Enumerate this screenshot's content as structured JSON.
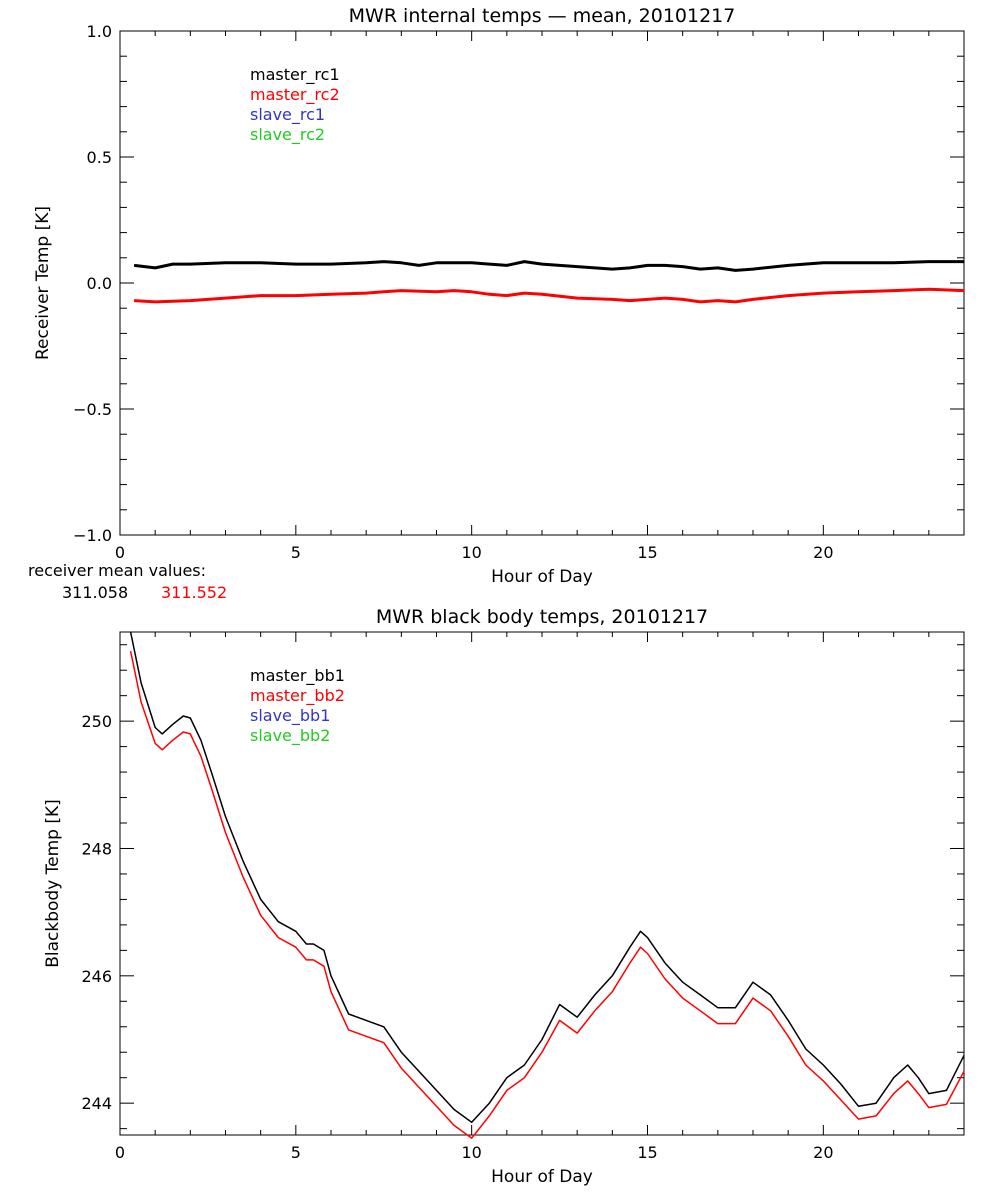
{
  "chart_data": [
    {
      "type": "line",
      "title": "MWR internal temps — mean, 20101217",
      "xlabel": "Hour of Day",
      "ylabel": "Receiver Temp [K]",
      "xlim": [
        0,
        24
      ],
      "ylim": [
        -1.0,
        1.0
      ],
      "xticks": [
        0,
        5,
        10,
        15,
        20
      ],
      "xtick_labels": [
        "0",
        "5",
        "10",
        "15",
        "20"
      ],
      "yticks": [
        -1.0,
        -0.5,
        0.0,
        0.5,
        1.0
      ],
      "ytick_labels": [
        "−1.0",
        "−0.5",
        "0.0",
        "0.5",
        "1.0"
      ],
      "legend": [
        "master_rc1",
        "master_rc2",
        "slave_rc1",
        "slave_rc2"
      ],
      "legend_colors": [
        "#000000",
        "#ff0000",
        "#3333cc",
        "#22cc22"
      ],
      "series": [
        {
          "name": "master_rc1",
          "color": "#000000",
          "x": [
            0.4,
            1.0,
            1.5,
            2.0,
            3.0,
            4.0,
            5.0,
            6.0,
            7.0,
            7.5,
            8.0,
            8.5,
            9.0,
            10.0,
            10.5,
            11.0,
            11.5,
            12.0,
            13.0,
            14.0,
            14.5,
            15.0,
            15.5,
            16.0,
            16.5,
            17.0,
            17.5,
            18.0,
            19.0,
            20.0,
            21.0,
            22.0,
            23.0,
            23.5,
            24.0
          ],
          "y": [
            0.07,
            0.06,
            0.075,
            0.075,
            0.08,
            0.08,
            0.075,
            0.075,
            0.08,
            0.085,
            0.08,
            0.07,
            0.08,
            0.08,
            0.075,
            0.07,
            0.085,
            0.075,
            0.065,
            0.055,
            0.06,
            0.07,
            0.07,
            0.065,
            0.055,
            0.06,
            0.05,
            0.055,
            0.07,
            0.08,
            0.08,
            0.08,
            0.085,
            0.085,
            0.085
          ]
        },
        {
          "name": "master_rc2",
          "color": "#ff0000",
          "x": [
            0.4,
            1.0,
            2.0,
            3.0,
            4.0,
            5.0,
            6.0,
            7.0,
            7.5,
            8.0,
            9.0,
            9.5,
            10.0,
            10.5,
            11.0,
            11.5,
            12.0,
            13.0,
            14.0,
            14.5,
            15.0,
            15.5,
            16.0,
            16.5,
            17.0,
            17.5,
            18.0,
            19.0,
            20.0,
            21.0,
            22.0,
            23.0,
            24.0
          ],
          "y": [
            -0.07,
            -0.075,
            -0.07,
            -0.06,
            -0.05,
            -0.05,
            -0.045,
            -0.04,
            -0.035,
            -0.03,
            -0.035,
            -0.03,
            -0.035,
            -0.045,
            -0.05,
            -0.04,
            -0.045,
            -0.06,
            -0.065,
            -0.07,
            -0.065,
            -0.06,
            -0.065,
            -0.075,
            -0.07,
            -0.075,
            -0.065,
            -0.05,
            -0.04,
            -0.035,
            -0.03,
            -0.025,
            -0.03
          ]
        }
      ]
    },
    {
      "type": "line",
      "title": "MWR black body temps, 20101217",
      "xlabel": "Hour of Day",
      "ylabel": "Blackbody Temp [K]",
      "xlim": [
        0,
        24
      ],
      "ylim": [
        243.5,
        251.4
      ],
      "xticks": [
        0,
        5,
        10,
        15,
        20
      ],
      "xtick_labels": [
        "0",
        "5",
        "10",
        "15",
        "20"
      ],
      "yticks": [
        244,
        246,
        248,
        250
      ],
      "ytick_labels": [
        "244",
        "246",
        "248",
        "250"
      ],
      "legend": [
        "master_bb1",
        "master_bb2",
        "slave_bb1",
        "slave_bb2"
      ],
      "legend_colors": [
        "#000000",
        "#ff0000",
        "#3333cc",
        "#22cc22"
      ],
      "series": [
        {
          "name": "master_bb1",
          "color": "#000000",
          "x": [
            0.3,
            0.6,
            1.0,
            1.2,
            1.5,
            1.8,
            2.0,
            2.3,
            2.6,
            3.0,
            3.5,
            4.0,
            4.5,
            5.0,
            5.3,
            5.5,
            5.8,
            6.0,
            6.5,
            7.0,
            7.5,
            8.0,
            8.5,
            9.0,
            9.5,
            10.0,
            10.5,
            11.0,
            11.5,
            12.0,
            12.5,
            13.0,
            13.5,
            14.0,
            14.5,
            14.8,
            15.0,
            15.5,
            16.0,
            16.5,
            17.0,
            17.5,
            18.0,
            18.5,
            19.0,
            19.5,
            20.0,
            20.5,
            21.0,
            21.5,
            22.0,
            22.4,
            22.7,
            23.0,
            23.5,
            24.0
          ],
          "y": [
            251.4,
            250.6,
            249.9,
            249.8,
            249.95,
            250.08,
            250.05,
            249.7,
            249.2,
            248.5,
            247.8,
            247.2,
            246.85,
            246.7,
            246.5,
            246.5,
            246.4,
            246.0,
            245.4,
            245.3,
            245.2,
            244.8,
            244.5,
            244.2,
            243.9,
            243.7,
            244.0,
            244.4,
            244.6,
            245.0,
            245.55,
            245.35,
            245.7,
            246.0,
            246.45,
            246.7,
            246.6,
            246.2,
            245.9,
            245.7,
            245.5,
            245.5,
            245.9,
            245.7,
            245.3,
            244.85,
            244.6,
            244.3,
            243.95,
            244.0,
            244.4,
            244.6,
            244.4,
            244.15,
            244.2,
            244.75
          ]
        },
        {
          "name": "master_bb2",
          "color": "#ff0000",
          "x": [
            0.3,
            0.6,
            1.0,
            1.2,
            1.5,
            1.8,
            2.0,
            2.3,
            2.6,
            3.0,
            3.5,
            4.0,
            4.5,
            5.0,
            5.3,
            5.5,
            5.8,
            6.0,
            6.5,
            7.0,
            7.5,
            8.0,
            8.5,
            9.0,
            9.5,
            10.0,
            10.5,
            11.0,
            11.5,
            12.0,
            12.5,
            13.0,
            13.5,
            14.0,
            14.5,
            14.8,
            15.0,
            15.5,
            16.0,
            16.5,
            17.0,
            17.5,
            18.0,
            18.5,
            19.0,
            19.5,
            20.0,
            20.5,
            21.0,
            21.5,
            22.0,
            22.4,
            22.7,
            23.0,
            23.5,
            24.0
          ],
          "y": [
            251.1,
            250.3,
            249.65,
            249.55,
            249.7,
            249.83,
            249.8,
            249.45,
            248.95,
            248.25,
            247.55,
            246.95,
            246.6,
            246.45,
            246.25,
            246.25,
            246.15,
            245.75,
            245.15,
            245.05,
            244.95,
            244.55,
            244.25,
            243.95,
            243.65,
            243.45,
            243.8,
            244.2,
            244.4,
            244.8,
            245.3,
            245.1,
            245.45,
            245.75,
            246.2,
            246.45,
            246.35,
            245.95,
            245.65,
            245.45,
            245.25,
            245.25,
            245.65,
            245.45,
            245.05,
            244.6,
            244.35,
            244.05,
            243.75,
            243.8,
            244.15,
            244.35,
            244.15,
            243.93,
            243.98,
            244.5
          ]
        }
      ]
    }
  ],
  "receiver_mean": {
    "label": "receiver mean values:",
    "value_1": "311.058",
    "value_2": "311.552",
    "color_1": "#000000",
    "color_2": "#ff0000"
  }
}
